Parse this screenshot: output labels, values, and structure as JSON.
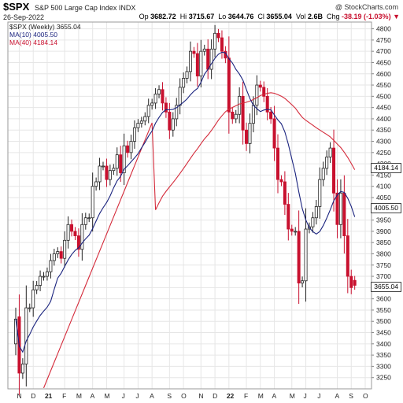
{
  "header": {
    "symbol": "$SPX",
    "index_name": "S&P 500 Large Cap Index  INDX",
    "date": "26-Sep-2022",
    "brand": "@ StockCharts.com",
    "ohlc": {
      "open_label": "Op",
      "open": "3682.72",
      "high_label": "Hi",
      "high": "3715.67",
      "low_label": "Lo",
      "low": "3644.76",
      "close_label": "Cl",
      "close": "3655.04",
      "vol_label": "Vol",
      "vol": "2.6B",
      "chg_label": "Chg",
      "chg": "-38.19 (-1.03%)",
      "chg_arrow": "▼"
    }
  },
  "legend": {
    "spx": "$SPX (Weekly) 3655.04",
    "ma10": "MA(10) 4005.50",
    "ma40": "MA(40) 4184.14"
  },
  "tags": {
    "ma40": "4184.14",
    "ma10": "4005.50",
    "price": "3655.04"
  },
  "colors": {
    "up": "#222222",
    "down": "#c8102e",
    "ma10": "#1a237e",
    "ma40": "#d42a3a",
    "grid": "#e6e6e6"
  },
  "chart_data": {
    "type": "candlestick",
    "ylim": [
      3200,
      4830
    ],
    "yticks": [
      3250,
      3300,
      3350,
      3400,
      3450,
      3500,
      3550,
      3600,
      3650,
      3700,
      3750,
      3800,
      3850,
      3900,
      3950,
      4000,
      4050,
      4100,
      4150,
      4200,
      4250,
      4300,
      4350,
      4400,
      4450,
      4500,
      4550,
      4600,
      4650,
      4700,
      4750,
      4800
    ],
    "ytick_labels": [
      "3250",
      "3300",
      "3350",
      "3400",
      "3450",
      "3500",
      "3550",
      "3600",
      "3650",
      "3700",
      "3750",
      "3800",
      "3850",
      "3900",
      "3950",
      "4000",
      "4050",
      "4100",
      "4150",
      "4200",
      "4250",
      "4300",
      "4350",
      "4400",
      "4450",
      "4500",
      "4550",
      "4600",
      "4650",
      "4700",
      "4750",
      "4800"
    ],
    "months": [
      {
        "label": "N",
        "week": 1,
        "bold": false
      },
      {
        "label": "D",
        "week": 5,
        "bold": false
      },
      {
        "label": "21",
        "week": 9,
        "bold": true
      },
      {
        "label": "F",
        "week": 14,
        "bold": false
      },
      {
        "label": "M",
        "week": 18,
        "bold": false
      },
      {
        "label": "A",
        "week": 22,
        "bold": false
      },
      {
        "label": "M",
        "week": 26,
        "bold": false
      },
      {
        "label": "J",
        "week": 31,
        "bold": false
      },
      {
        "label": "J",
        "week": 35,
        "bold": false
      },
      {
        "label": "A",
        "week": 39,
        "bold": false
      },
      {
        "label": "S",
        "week": 44,
        "bold": false
      },
      {
        "label": "O",
        "week": 48,
        "bold": false
      },
      {
        "label": "N",
        "week": 53,
        "bold": false
      },
      {
        "label": "D",
        "week": 57,
        "bold": false
      },
      {
        "label": "22",
        "week": 61,
        "bold": true
      },
      {
        "label": "F",
        "week": 66,
        "bold": false
      },
      {
        "label": "M",
        "week": 70,
        "bold": false
      },
      {
        "label": "A",
        "week": 74,
        "bold": false
      },
      {
        "label": "M",
        "week": 79,
        "bold": false
      },
      {
        "label": "J",
        "week": 83,
        "bold": false
      },
      {
        "label": "J",
        "week": 87,
        "bold": false
      },
      {
        "label": "A",
        "week": 92,
        "bold": false
      },
      {
        "label": "S",
        "week": 96,
        "bold": false
      },
      {
        "label": "O",
        "week": 100,
        "bold": false
      }
    ],
    "closes": [
      3510,
      3270,
      3310,
      3560,
      3560,
      3640,
      3660,
      3700,
      3700,
      3720,
      3770,
      3800,
      3810,
      3780,
      3860,
      3930,
      3900,
      3880,
      3820,
      3930,
      3960,
      3960,
      4100,
      4120,
      4190,
      4190,
      4130,
      4170,
      4180,
      4240,
      4160,
      4280,
      4250,
      4300,
      4360,
      4380,
      4390,
      4410,
      4460,
      4470,
      4510,
      4530,
      4470,
      4430,
      4350,
      4400,
      4460,
      4540,
      4580,
      4610,
      4700,
      4690,
      4590,
      4700,
      4710,
      4620,
      4710,
      4780,
      4760,
      4700,
      4670,
      4430,
      4400,
      4420,
      4500,
      4350,
      4290,
      4380,
      4460,
      4550,
      4540,
      4500,
      4430,
      4400,
      4270,
      4130,
      4120,
      4020,
      3910,
      3900,
      3900,
      3670,
      3680,
      3910,
      3920,
      3960,
      4010,
      4130,
      4180,
      4230,
      4270,
      4070,
      3930,
      4070,
      3880,
      3700,
      3650,
      3660
    ],
    "opens": [
      3400,
      3520,
      3270,
      3310,
      3560,
      3560,
      3640,
      3660,
      3700,
      3700,
      3720,
      3770,
      3800,
      3810,
      3780,
      3860,
      3930,
      3900,
      3880,
      3820,
      3930,
      3960,
      3960,
      4100,
      4120,
      4190,
      4190,
      4130,
      4170,
      4180,
      4240,
      4160,
      4280,
      4250,
      4300,
      4360,
      4380,
      4390,
      4410,
      4460,
      4470,
      4510,
      4530,
      4470,
      4430,
      4350,
      4400,
      4460,
      4540,
      4580,
      4610,
      4700,
      4690,
      4590,
      4700,
      4710,
      4620,
      4710,
      4780,
      4760,
      4700,
      4670,
      4430,
      4400,
      4420,
      4500,
      4350,
      4290,
      4380,
      4460,
      4550,
      4540,
      4500,
      4430,
      4400,
      4270,
      4130,
      4120,
      4020,
      3910,
      3900,
      3900,
      3670,
      3680,
      3910,
      3920,
      3960,
      4010,
      4130,
      4180,
      4230,
      4270,
      4070,
      3930,
      4070,
      3880,
      3700,
      3682
    ]
  }
}
